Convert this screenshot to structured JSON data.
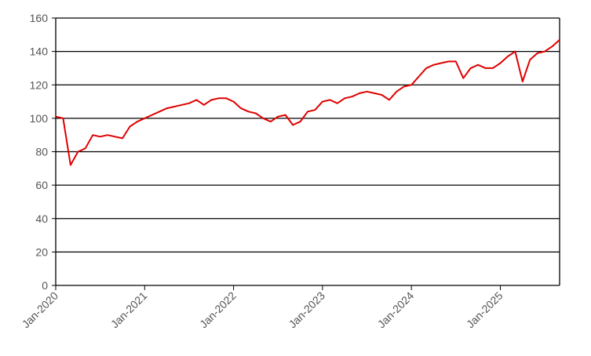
{
  "chart_data": {
    "type": "line",
    "x": [
      "Jan-2020",
      "Feb-2020",
      "Mar-2020",
      "Apr-2020",
      "May-2020",
      "Jun-2020",
      "Jul-2020",
      "Aug-2020",
      "Sep-2020",
      "Oct-2020",
      "Nov-2020",
      "Dec-2020",
      "Jan-2021",
      "Feb-2021",
      "Mar-2021",
      "Apr-2021",
      "May-2021",
      "Jun-2021",
      "Jul-2021",
      "Aug-2021",
      "Sep-2021",
      "Oct-2021",
      "Nov-2021",
      "Dec-2021",
      "Jan-2022",
      "Feb-2022",
      "Mar-2022",
      "Apr-2022",
      "May-2022",
      "Jun-2022",
      "Jul-2022",
      "Aug-2022",
      "Sep-2022",
      "Oct-2022",
      "Nov-2022",
      "Dec-2022",
      "Jan-2023",
      "Feb-2023",
      "Mar-2023",
      "Apr-2023",
      "May-2023",
      "Jun-2023",
      "Jul-2023",
      "Aug-2023",
      "Sep-2023",
      "Oct-2023",
      "Nov-2023",
      "Dec-2023",
      "Jan-2024",
      "Feb-2024",
      "Mar-2024",
      "Apr-2024",
      "May-2024",
      "Jun-2024",
      "Jul-2024",
      "Aug-2024",
      "Sep-2024",
      "Oct-2024",
      "Nov-2024",
      "Dec-2024",
      "Jan-2025",
      "Feb-2025",
      "Mar-2025",
      "Apr-2025",
      "May-2025",
      "Jun-2025",
      "Jul-2025",
      "Aug-2025",
      "Sep-2025"
    ],
    "values": [
      101,
      100,
      72,
      80,
      82,
      90,
      89,
      90,
      89,
      88,
      95,
      98,
      100,
      102,
      104,
      106,
      107,
      108,
      109,
      111,
      108,
      111,
      112,
      112,
      110,
      106,
      104,
      103,
      100,
      98,
      101,
      102,
      96,
      98,
      104,
      105,
      110,
      111,
      109,
      112,
      113,
      115,
      116,
      115,
      114,
      111,
      116,
      119,
      120,
      125,
      130,
      132,
      133,
      134,
      134,
      124,
      130,
      132,
      130,
      130,
      133,
      137,
      140,
      122,
      135,
      139,
      140,
      143,
      147
    ],
    "color": "#e00000",
    "xticks": [
      "Jan-2020",
      "Jan-2021",
      "Jan-2022",
      "Jan-2023",
      "Jan-2024",
      "Jan-2025"
    ],
    "ylim": [
      0,
      160
    ],
    "yticks": [
      0,
      20,
      40,
      60,
      80,
      100,
      120,
      140,
      160
    ],
    "grid": true
  }
}
